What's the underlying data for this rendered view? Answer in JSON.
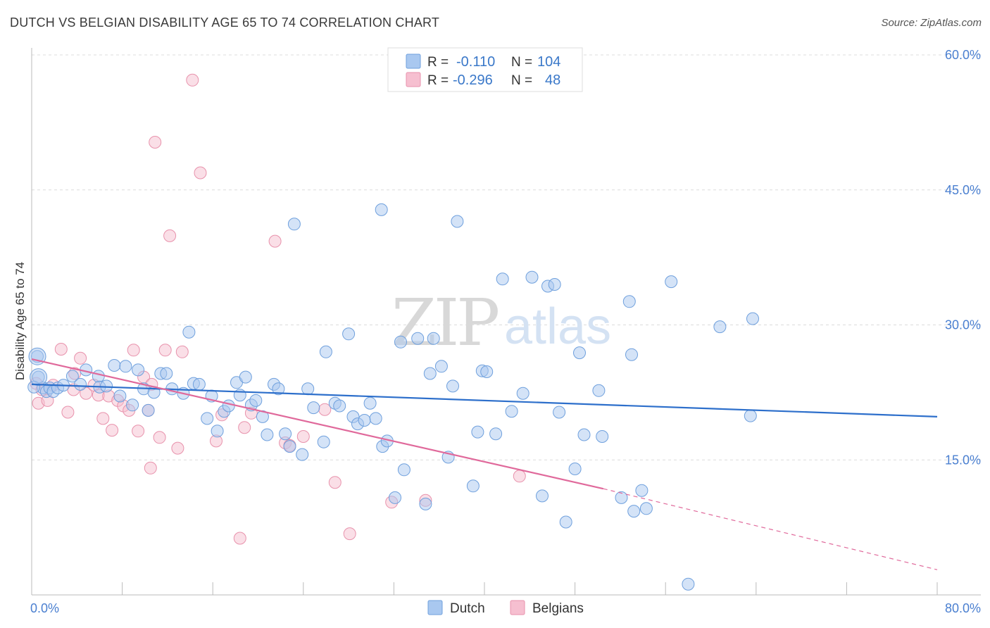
{
  "title": "DUTCH VS BELGIAN DISABILITY AGE 65 TO 74 CORRELATION CHART",
  "source": "Source: ZipAtlas.com",
  "watermark": {
    "zip": "ZIP",
    "atlas": "atlas"
  },
  "legend": {
    "r_label": "R =",
    "n_label": "N =",
    "items": [
      {
        "name": "Dutch",
        "r": "-0.110",
        "n": "104",
        "color": "#a9c8f0",
        "stroke": "#6fa0dd"
      },
      {
        "name": "Belgians",
        "r": "-0.296",
        "n": "48",
        "color": "#f6bfd0",
        "stroke": "#e892ac"
      }
    ]
  },
  "chart_data": {
    "type": "scatter",
    "xlabel": "",
    "ylabel": "Disability Age 65 to 74",
    "xlim": [
      0,
      80
    ],
    "ylim": [
      0,
      60
    ],
    "x_tick_labels": [
      "0.0%",
      "80.0%"
    ],
    "y_tick_labels": [
      "15.0%",
      "30.0%",
      "45.0%",
      "60.0%"
    ],
    "y_ticks": [
      15,
      30,
      45,
      60
    ],
    "grid": true,
    "legend_position": "top-center",
    "series": [
      {
        "name": "Dutch",
        "color": "#a9c8f0",
        "stroke": "#6fa0dd",
        "trend": {
          "x": [
            0,
            80
          ],
          "y": [
            23.4,
            19.8
          ],
          "color": "#2d6fcb"
        },
        "points": [
          [
            0.5,
            26.5
          ],
          [
            0.6,
            24.2
          ],
          [
            1.0,
            23.0
          ],
          [
            1.3,
            22.6
          ],
          [
            1.6,
            23.0
          ],
          [
            1.9,
            22.6
          ],
          [
            2.3,
            23.0
          ],
          [
            2.8,
            23.3
          ],
          [
            3.6,
            24.3
          ],
          [
            4.3,
            23.4
          ],
          [
            4.8,
            25.0
          ],
          [
            5.9,
            24.3
          ],
          [
            6.0,
            23.1
          ],
          [
            6.6,
            23.2
          ],
          [
            7.3,
            25.5
          ],
          [
            7.8,
            22.1
          ],
          [
            8.3,
            25.4
          ],
          [
            8.9,
            21.1
          ],
          [
            9.4,
            25.0
          ],
          [
            9.9,
            22.9
          ],
          [
            10.3,
            20.5
          ],
          [
            10.8,
            22.5
          ],
          [
            11.4,
            24.6
          ],
          [
            11.9,
            24.6
          ],
          [
            12.4,
            22.9
          ],
          [
            13.4,
            22.4
          ],
          [
            13.9,
            29.2
          ],
          [
            14.3,
            23.5
          ],
          [
            14.8,
            23.4
          ],
          [
            15.5,
            19.6
          ],
          [
            15.9,
            22.1
          ],
          [
            16.4,
            18.2
          ],
          [
            17.0,
            20.4
          ],
          [
            17.4,
            21.0
          ],
          [
            18.1,
            23.6
          ],
          [
            18.4,
            22.2
          ],
          [
            18.9,
            24.2
          ],
          [
            19.4,
            21.1
          ],
          [
            19.8,
            21.6
          ],
          [
            20.4,
            19.8
          ],
          [
            20.8,
            17.8
          ],
          [
            21.4,
            23.4
          ],
          [
            21.8,
            22.9
          ],
          [
            22.4,
            17.9
          ],
          [
            22.8,
            16.5
          ],
          [
            23.2,
            41.2
          ],
          [
            23.9,
            15.6
          ],
          [
            24.4,
            22.9
          ],
          [
            24.9,
            20.8
          ],
          [
            25.8,
            17.0
          ],
          [
            26.0,
            27.0
          ],
          [
            26.8,
            21.3
          ],
          [
            27.2,
            21.0
          ],
          [
            28.0,
            29.0
          ],
          [
            28.4,
            19.8
          ],
          [
            28.8,
            19.0
          ],
          [
            29.4,
            19.4
          ],
          [
            29.9,
            21.3
          ],
          [
            30.4,
            19.6
          ],
          [
            30.9,
            42.8
          ],
          [
            31.0,
            16.5
          ],
          [
            31.4,
            17.1
          ],
          [
            32.1,
            10.8
          ],
          [
            32.6,
            28.1
          ],
          [
            32.9,
            13.9
          ],
          [
            34.1,
            28.5
          ],
          [
            34.8,
            10.1
          ],
          [
            35.2,
            24.6
          ],
          [
            35.5,
            28.5
          ],
          [
            36.2,
            25.4
          ],
          [
            36.8,
            15.3
          ],
          [
            37.2,
            23.2
          ],
          [
            37.6,
            41.5
          ],
          [
            39.0,
            12.1
          ],
          [
            39.4,
            18.1
          ],
          [
            39.8,
            24.9
          ],
          [
            40.2,
            24.8
          ],
          [
            41.0,
            17.9
          ],
          [
            41.6,
            35.1
          ],
          [
            42.4,
            20.4
          ],
          [
            43.4,
            22.4
          ],
          [
            44.2,
            35.3
          ],
          [
            45.1,
            11.0
          ],
          [
            45.6,
            34.3
          ],
          [
            46.2,
            34.5
          ],
          [
            46.6,
            20.3
          ],
          [
            47.2,
            8.1
          ],
          [
            48.0,
            14.0
          ],
          [
            48.4,
            26.9
          ],
          [
            48.8,
            17.8
          ],
          [
            50.1,
            22.7
          ],
          [
            50.4,
            17.6
          ],
          [
            52.1,
            10.8
          ],
          [
            52.8,
            32.6
          ],
          [
            53.0,
            26.7
          ],
          [
            53.2,
            9.3
          ],
          [
            53.9,
            11.6
          ],
          [
            54.3,
            9.6
          ],
          [
            56.5,
            34.8
          ],
          [
            58.0,
            1.2
          ],
          [
            60.8,
            29.8
          ],
          [
            63.5,
            19.9
          ],
          [
            63.7,
            30.7
          ],
          [
            0.2,
            23.1
          ]
        ]
      },
      {
        "name": "Belgians",
        "color": "#f6bfd0",
        "stroke": "#e892ac",
        "trend": {
          "x": [
            0,
            50.5
          ],
          "y": [
            26.2,
            11.8
          ],
          "color": "#e0699b",
          "dashed_to": [
            80,
            2.8
          ]
        },
        "points": [
          [
            0.4,
            23.5
          ],
          [
            0.6,
            21.3
          ],
          [
            0.9,
            22.8
          ],
          [
            1.4,
            21.6
          ],
          [
            1.9,
            23.3
          ],
          [
            2.6,
            27.3
          ],
          [
            3.2,
            20.3
          ],
          [
            3.7,
            22.8
          ],
          [
            4.3,
            26.3
          ],
          [
            4.8,
            22.4
          ],
          [
            5.5,
            23.3
          ],
          [
            5.9,
            22.2
          ],
          [
            6.3,
            19.6
          ],
          [
            6.8,
            22.1
          ],
          [
            7.1,
            18.3
          ],
          [
            7.6,
            21.6
          ],
          [
            8.1,
            21.0
          ],
          [
            8.6,
            20.5
          ],
          [
            9.0,
            27.2
          ],
          [
            9.4,
            18.2
          ],
          [
            9.9,
            24.2
          ],
          [
            10.3,
            20.5
          ],
          [
            10.5,
            14.1
          ],
          [
            10.9,
            50.3
          ],
          [
            11.3,
            17.5
          ],
          [
            11.8,
            27.2
          ],
          [
            12.2,
            39.9
          ],
          [
            12.9,
            16.3
          ],
          [
            13.3,
            27.0
          ],
          [
            14.2,
            57.2
          ],
          [
            14.9,
            46.9
          ],
          [
            16.3,
            17.1
          ],
          [
            16.8,
            20.0
          ],
          [
            18.4,
            6.3
          ],
          [
            18.8,
            18.6
          ],
          [
            19.4,
            20.2
          ],
          [
            21.5,
            39.3
          ],
          [
            22.4,
            16.9
          ],
          [
            22.8,
            16.6
          ],
          [
            24.0,
            17.6
          ],
          [
            25.9,
            20.6
          ],
          [
            26.8,
            12.5
          ],
          [
            28.1,
            6.8
          ],
          [
            31.8,
            10.3
          ],
          [
            34.8,
            10.5
          ],
          [
            43.1,
            13.2
          ],
          [
            10.6,
            23.4
          ],
          [
            3.8,
            24.6
          ]
        ]
      }
    ]
  }
}
